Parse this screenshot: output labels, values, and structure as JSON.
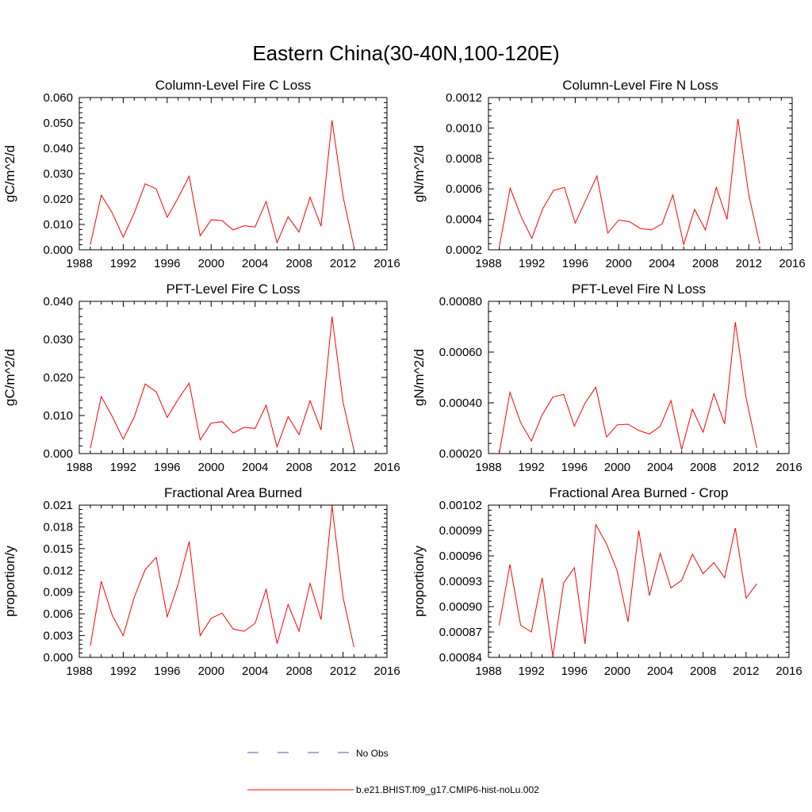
{
  "figure": {
    "title": "Eastern China(30-40N,100-120E)"
  },
  "legend": {
    "entries": [
      {
        "label": "No Obs",
        "color": "#4a5aa8",
        "dash": true
      },
      {
        "label": "b.e21.BHIST.f09_g17.CMIP6-hist-noLu.002",
        "color": "#ff0000",
        "dash": false
      }
    ]
  },
  "chart_data": [
    {
      "type": "line",
      "title": "Column-Level Fire C Loss",
      "ylabel": "gC/m^2/d",
      "xlim": [
        1988,
        2016
      ],
      "xticks": [
        "1988",
        "1992",
        "1996",
        "2000",
        "2004",
        "2008",
        "2012",
        "2016"
      ],
      "ylim": [
        0,
        0.06
      ],
      "yticks": [
        "0.000",
        "0.010",
        "0.020",
        "0.030",
        "0.040",
        "0.050",
        "0.060"
      ],
      "series": [
        {
          "name": "b.e21.BHIST.f09_g17.CMIP6-hist-noLu.002",
          "color": "#ff0000",
          "x": [
            1989,
            1990,
            1991,
            1992,
            1993,
            1994,
            1995,
            1996,
            1997,
            1998,
            1999,
            2000,
            2001,
            2002,
            2003,
            2004,
            2005,
            2006,
            2007,
            2008,
            2009,
            2010,
            2011,
            2012,
            2013
          ],
          "y": [
            0.002,
            0.0215,
            0.0145,
            0.005,
            0.0145,
            0.026,
            0.024,
            0.0128,
            0.0205,
            0.029,
            0.0055,
            0.0118,
            0.0115,
            0.0078,
            0.0095,
            0.009,
            0.019,
            0.0028,
            0.013,
            0.007,
            0.0207,
            0.0093,
            0.051,
            0.021,
            0.001
          ]
        }
      ]
    },
    {
      "type": "line",
      "title": "Column-Level Fire N Loss",
      "ylabel": "gN/m^2/d",
      "xlim": [
        1988,
        2016
      ],
      "xticks": [
        "1988",
        "1992",
        "1996",
        "2000",
        "2004",
        "2008",
        "2012",
        "2016"
      ],
      "ylim": [
        0.0002,
        0.0012
      ],
      "yticks": [
        "0.0002",
        "0.0004",
        "0.0006",
        "0.0008",
        "0.0010",
        "0.0012"
      ],
      "series": [
        {
          "name": "b.e21.BHIST.f09_g17.CMIP6-hist-noLu.002",
          "color": "#ff0000",
          "x": [
            1989,
            1990,
            1991,
            1992,
            1993,
            1994,
            1995,
            1996,
            1997,
            1998,
            1999,
            2000,
            2001,
            2002,
            2003,
            2004,
            2005,
            2006,
            2007,
            2008,
            2009,
            2010,
            2011,
            2012,
            2013
          ],
          "y": [
            0.00022,
            0.000605,
            0.00042,
            0.000275,
            0.00047,
            0.00059,
            0.00061,
            0.000375,
            0.00053,
            0.000685,
            0.00031,
            0.000395,
            0.000385,
            0.00034,
            0.00033,
            0.00037,
            0.00056,
            0.000235,
            0.000465,
            0.00033,
            0.00061,
            0.0004,
            0.00106,
            0.00056,
            0.00024
          ]
        }
      ]
    },
    {
      "type": "line",
      "title": "PFT-Level Fire C Loss",
      "ylabel": "gC/m^2/d",
      "xlim": [
        1988,
        2016
      ],
      "xticks": [
        "1988",
        "1992",
        "1996",
        "2000",
        "2004",
        "2008",
        "2012",
        "2016"
      ],
      "ylim": [
        0,
        0.04
      ],
      "yticks": [
        "0.000",
        "0.010",
        "0.020",
        "0.030",
        "0.040"
      ],
      "series": [
        {
          "name": "b.e21.BHIST.f09_g17.CMIP6-hist-noLu.002",
          "color": "#ff0000",
          "x": [
            1989,
            1990,
            1991,
            1992,
            1993,
            1994,
            1995,
            1996,
            1997,
            1998,
            1999,
            2000,
            2001,
            2002,
            2003,
            2004,
            2005,
            2006,
            2007,
            2008,
            2009,
            2010,
            2011,
            2012,
            2013
          ],
          "y": [
            0.0014,
            0.015,
            0.0097,
            0.0038,
            0.0096,
            0.0183,
            0.0162,
            0.0095,
            0.0143,
            0.0185,
            0.0036,
            0.008,
            0.0084,
            0.0054,
            0.0069,
            0.0066,
            0.0127,
            0.0018,
            0.0097,
            0.005,
            0.0139,
            0.0062,
            0.036,
            0.0135,
            0.0008
          ]
        }
      ]
    },
    {
      "type": "line",
      "title": "PFT-Level Fire N Loss",
      "ylabel": "gN/m^2/d",
      "xlim": [
        1988,
        2016
      ],
      "xticks": [
        "1988",
        "1992",
        "1996",
        "2000",
        "2004",
        "2008",
        "2012",
        "2016"
      ],
      "ylim": [
        0.0002,
        0.0009
      ],
      "yticks": [
        "0.00020",
        "0.00040",
        "0.00060",
        "0.00080"
      ],
      "series": [
        {
          "name": "b.e21.BHIST.f09_g17.CMIP6-hist-noLu.002",
          "color": "#ff0000",
          "x": [
            1989,
            1990,
            1991,
            1992,
            1993,
            1994,
            1995,
            1996,
            1997,
            1998,
            1999,
            2000,
            2001,
            2002,
            2003,
            2004,
            2005,
            2006,
            2007,
            2008,
            2009,
            2010,
            2011,
            2012,
            2013
          ],
          "y": [
            0.0002,
            0.000482,
            0.000342,
            0.000258,
            0.000378,
            0.00046,
            0.000472,
            0.000326,
            0.000432,
            0.000505,
            0.000276,
            0.000332,
            0.000335,
            0.000306,
            0.00029,
            0.000325,
            0.000444,
            0.000218,
            0.000404,
            0.000298,
            0.000475,
            0.000336,
            0.000804,
            0.000456,
            0.000226
          ]
        }
      ]
    },
    {
      "type": "line",
      "title": "Fractional Area Burned",
      "ylabel": "proportion/y",
      "xlim": [
        1988,
        2016
      ],
      "xticks": [
        "1988",
        "1992",
        "1996",
        "2000",
        "2004",
        "2008",
        "2012",
        "2016"
      ],
      "ylim": [
        0,
        0.021
      ],
      "yticks": [
        "0.000",
        "0.003",
        "0.006",
        "0.009",
        "0.012",
        "0.015",
        "0.018",
        "0.021"
      ],
      "series": [
        {
          "name": "b.e21.BHIST.f09_g17.CMIP6-hist-noLu.002",
          "color": "#ff0000",
          "x": [
            1989,
            1990,
            1991,
            1992,
            1993,
            1994,
            1995,
            1996,
            1997,
            1998,
            1999,
            2000,
            2001,
            2002,
            2003,
            2004,
            2005,
            2006,
            2007,
            2008,
            2009,
            2010,
            2011,
            2012,
            2013
          ],
          "y": [
            0.0016,
            0.0105,
            0.0058,
            0.003,
            0.0083,
            0.0121,
            0.0138,
            0.0056,
            0.0101,
            0.016,
            0.003,
            0.0054,
            0.0061,
            0.0039,
            0.0036,
            0.0047,
            0.0094,
            0.0019,
            0.0073,
            0.0036,
            0.0102,
            0.0052,
            0.0209,
            0.0083,
            0.0014
          ]
        }
      ]
    },
    {
      "type": "line",
      "title": "Fractional Area Burned - Crop",
      "ylabel": "proportion/y",
      "xlim": [
        1988,
        2016
      ],
      "xticks": [
        "1988",
        "1992",
        "1996",
        "2000",
        "2004",
        "2008",
        "2012",
        "2016"
      ],
      "ylim": [
        0.00084,
        0.00102
      ],
      "yticks": [
        "0.00084",
        "0.00087",
        "0.00090",
        "0.00093",
        "0.00096",
        "0.00099",
        "0.00102"
      ],
      "series": [
        {
          "name": "b.e21.BHIST.f09_g17.CMIP6-hist-noLu.002",
          "color": "#ff0000",
          "x": [
            1989,
            1990,
            1991,
            1992,
            1993,
            1994,
            1995,
            1996,
            1997,
            1998,
            1999,
            2000,
            2001,
            2002,
            2003,
            2004,
            2005,
            2006,
            2007,
            2008,
            2009,
            2010,
            2011,
            2012,
            2013
          ],
          "y": [
            0.000878,
            0.00095,
            0.000878,
            0.00087,
            0.000934,
            0.000841,
            0.000928,
            0.000946,
            0.000856,
            0.000997,
            0.000974,
            0.000942,
            0.000882,
            0.00099,
            0.000913,
            0.000963,
            0.000922,
            0.000931,
            0.000962,
            0.000939,
            0.000952,
            0.000934,
            0.000993,
            0.00091,
            0.000927
          ]
        }
      ]
    }
  ]
}
